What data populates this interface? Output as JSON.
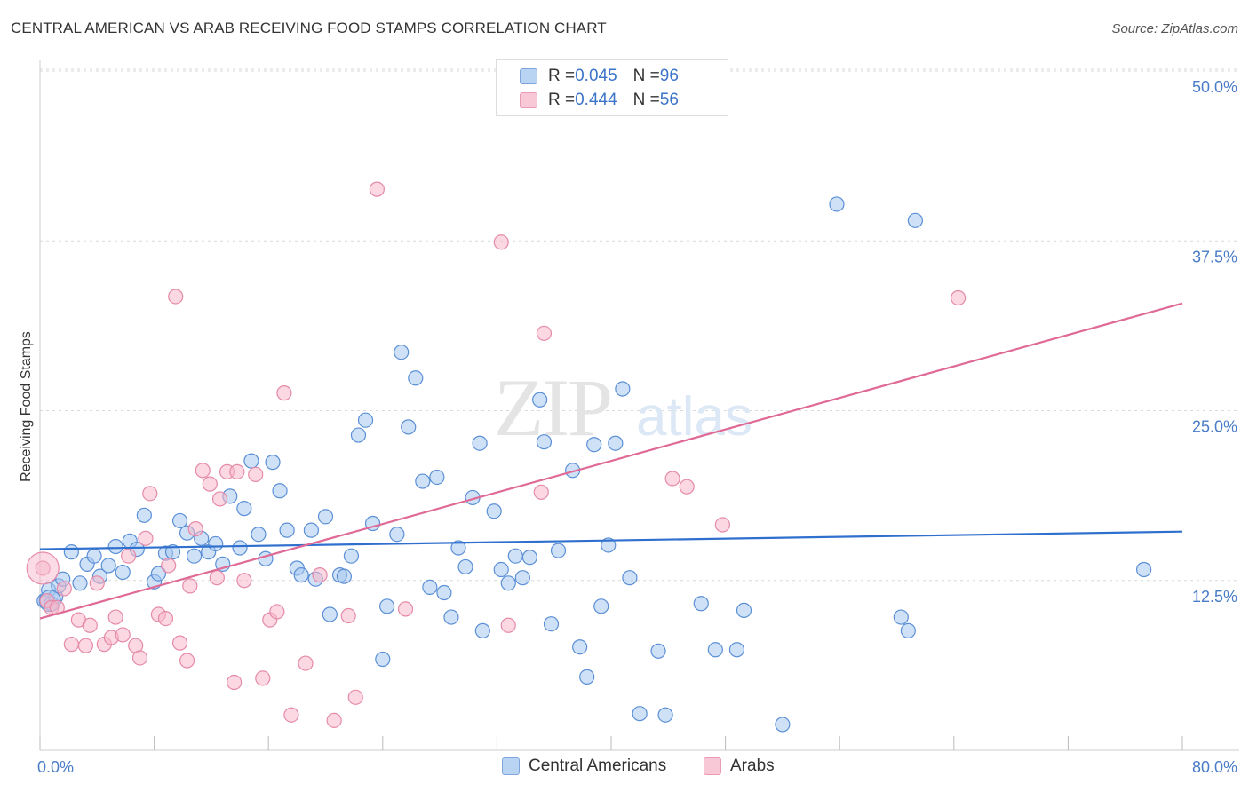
{
  "header": {
    "title": "CENTRAL AMERICAN VS ARAB RECEIVING FOOD STAMPS CORRELATION CHART",
    "source": "Source: ZipAtlas.com"
  },
  "watermark": {
    "zip": "ZIP",
    "atlas": "atlas"
  },
  "legend": {
    "rows": [
      {
        "r_label": "R = ",
        "r_value": "0.045",
        "n_label": "N = ",
        "n_value": "96"
      },
      {
        "r_label": "R = ",
        "r_value": "0.444",
        "n_label": "N = ",
        "n_value": "56"
      }
    ]
  },
  "bottom_legend": {
    "blue": "Central Americans",
    "pink": "Arabs"
  },
  "colors": {
    "blue_fill": "#a8c8f0",
    "blue_stroke": "#5b8fd6",
    "blue_line": "#2f6fce",
    "pink_fill": "#f7b8cb",
    "pink_stroke": "#e58aa8",
    "pink_line": "#e06a96",
    "tick_text": "#4a7cc7",
    "grid": "#d9d9d9"
  },
  "chart_data": {
    "type": "scatter",
    "title": "CENTRAL AMERICAN VS ARAB RECEIVING FOOD STAMPS CORRELATION CHART",
    "xlabel": "",
    "ylabel": "Receiving Food Stamps",
    "xlim": [
      0,
      80
    ],
    "ylim": [
      0,
      50
    ],
    "x_tick_labels": [
      "0.0%",
      "80.0%"
    ],
    "y_tick_labels": [
      "12.5%",
      "25.0%",
      "37.5%",
      "50.0%"
    ],
    "y_ticks": [
      12.5,
      25,
      37.5,
      50
    ],
    "grid": true,
    "legend_position": "top-center",
    "series": [
      {
        "name": "Central Americans",
        "color": "#a8c8f0",
        "trend": [
          [
            0,
            14.8
          ],
          [
            80,
            16.1
          ]
        ],
        "points": [
          [
            0.3,
            11.0
          ],
          [
            0.6,
            11.8
          ],
          [
            0.8,
            10.8
          ],
          [
            1.1,
            11.3
          ],
          [
            1.3,
            12.1
          ],
          [
            1.6,
            12.6
          ],
          [
            2.2,
            14.6
          ],
          [
            2.8,
            12.3
          ],
          [
            3.3,
            13.7
          ],
          [
            3.8,
            14.3
          ],
          [
            4.2,
            12.8
          ],
          [
            4.8,
            13.6
          ],
          [
            5.3,
            15.0
          ],
          [
            5.8,
            13.1
          ],
          [
            6.3,
            15.4
          ],
          [
            6.8,
            14.8
          ],
          [
            7.3,
            17.3
          ],
          [
            8.0,
            12.4
          ],
          [
            8.3,
            13.0
          ],
          [
            8.8,
            14.5
          ],
          [
            9.3,
            14.6
          ],
          [
            9.8,
            16.9
          ],
          [
            10.3,
            16.0
          ],
          [
            10.8,
            14.3
          ],
          [
            11.3,
            15.6
          ],
          [
            11.8,
            14.6
          ],
          [
            12.3,
            15.2
          ],
          [
            12.8,
            13.7
          ],
          [
            13.3,
            18.7
          ],
          [
            14.0,
            14.9
          ],
          [
            14.3,
            17.8
          ],
          [
            14.8,
            21.3
          ],
          [
            15.3,
            15.9
          ],
          [
            15.8,
            14.1
          ],
          [
            16.3,
            21.2
          ],
          [
            16.8,
            19.1
          ],
          [
            17.3,
            16.2
          ],
          [
            18.0,
            13.4
          ],
          [
            18.3,
            12.9
          ],
          [
            19.0,
            16.2
          ],
          [
            19.3,
            12.6
          ],
          [
            20.0,
            17.2
          ],
          [
            20.3,
            10.0
          ],
          [
            21.0,
            12.9
          ],
          [
            21.3,
            12.8
          ],
          [
            21.8,
            14.3
          ],
          [
            22.3,
            23.2
          ],
          [
            22.8,
            24.3
          ],
          [
            23.3,
            16.7
          ],
          [
            24.0,
            6.7
          ],
          [
            24.3,
            10.6
          ],
          [
            25.0,
            15.9
          ],
          [
            25.3,
            29.3
          ],
          [
            25.8,
            23.8
          ],
          [
            26.3,
            27.4
          ],
          [
            26.8,
            19.8
          ],
          [
            27.3,
            12.0
          ],
          [
            27.8,
            20.1
          ],
          [
            28.3,
            11.6
          ],
          [
            28.8,
            9.8
          ],
          [
            29.3,
            14.9
          ],
          [
            29.8,
            13.5
          ],
          [
            30.3,
            18.6
          ],
          [
            30.8,
            22.6
          ],
          [
            31.0,
            8.8
          ],
          [
            31.8,
            17.6
          ],
          [
            32.3,
            13.3
          ],
          [
            32.8,
            12.3
          ],
          [
            33.3,
            14.3
          ],
          [
            33.8,
            12.7
          ],
          [
            34.3,
            14.2
          ],
          [
            35.0,
            25.8
          ],
          [
            35.3,
            22.7
          ],
          [
            35.8,
            9.3
          ],
          [
            36.3,
            14.7
          ],
          [
            37.3,
            20.6
          ],
          [
            37.8,
            7.6
          ],
          [
            38.3,
            5.4
          ],
          [
            38.8,
            22.5
          ],
          [
            39.3,
            10.6
          ],
          [
            39.8,
            15.1
          ],
          [
            40.3,
            22.6
          ],
          [
            40.8,
            26.6
          ],
          [
            41.3,
            12.7
          ],
          [
            42.0,
            2.7
          ],
          [
            43.3,
            7.3
          ],
          [
            43.8,
            2.6
          ],
          [
            46.3,
            10.8
          ],
          [
            47.3,
            7.4
          ],
          [
            48.8,
            7.4
          ],
          [
            49.3,
            10.3
          ],
          [
            52.0,
            1.9
          ],
          [
            55.8,
            40.2
          ],
          [
            60.3,
            9.8
          ],
          [
            60.8,
            8.8
          ],
          [
            61.3,
            39.0
          ],
          [
            77.3,
            13.3
          ]
        ]
      },
      {
        "name": "Arabs",
        "color": "#f7b8cb",
        "trend": [
          [
            0,
            9.7
          ],
          [
            80,
            32.9
          ]
        ],
        "points": [
          [
            0.2,
            13.4
          ],
          [
            0.5,
            11.0
          ],
          [
            0.8,
            10.5
          ],
          [
            1.2,
            10.5
          ],
          [
            1.7,
            11.9
          ],
          [
            2.2,
            7.8
          ],
          [
            2.7,
            9.6
          ],
          [
            3.2,
            7.7
          ],
          [
            3.5,
            9.2
          ],
          [
            4.0,
            12.3
          ],
          [
            4.5,
            7.8
          ],
          [
            5.0,
            8.3
          ],
          [
            5.3,
            9.8
          ],
          [
            5.8,
            8.5
          ],
          [
            6.2,
            14.3
          ],
          [
            6.7,
            7.7
          ],
          [
            7.0,
            6.8
          ],
          [
            7.4,
            15.6
          ],
          [
            7.7,
            18.9
          ],
          [
            8.3,
            10.0
          ],
          [
            8.8,
            9.7
          ],
          [
            9.0,
            13.6
          ],
          [
            9.5,
            33.4
          ],
          [
            9.8,
            7.9
          ],
          [
            10.3,
            6.6
          ],
          [
            10.5,
            12.1
          ],
          [
            10.9,
            16.3
          ],
          [
            11.4,
            20.6
          ],
          [
            11.9,
            19.6
          ],
          [
            12.4,
            12.7
          ],
          [
            12.6,
            18.5
          ],
          [
            13.1,
            20.5
          ],
          [
            13.6,
            5.0
          ],
          [
            13.8,
            20.5
          ],
          [
            14.3,
            12.5
          ],
          [
            15.1,
            20.3
          ],
          [
            15.6,
            5.3
          ],
          [
            16.1,
            9.6
          ],
          [
            16.6,
            10.2
          ],
          [
            17.1,
            26.3
          ],
          [
            17.6,
            2.6
          ],
          [
            18.6,
            6.4
          ],
          [
            19.6,
            12.9
          ],
          [
            20.6,
            2.2
          ],
          [
            21.6,
            9.9
          ],
          [
            22.1,
            3.9
          ],
          [
            23.6,
            41.3
          ],
          [
            25.6,
            10.4
          ],
          [
            32.3,
            37.4
          ],
          [
            32.8,
            9.2
          ],
          [
            35.1,
            19.0
          ],
          [
            35.3,
            30.7
          ],
          [
            44.3,
            20.0
          ],
          [
            45.3,
            19.4
          ],
          [
            47.8,
            16.6
          ],
          [
            64.3,
            33.3
          ]
        ]
      }
    ]
  }
}
